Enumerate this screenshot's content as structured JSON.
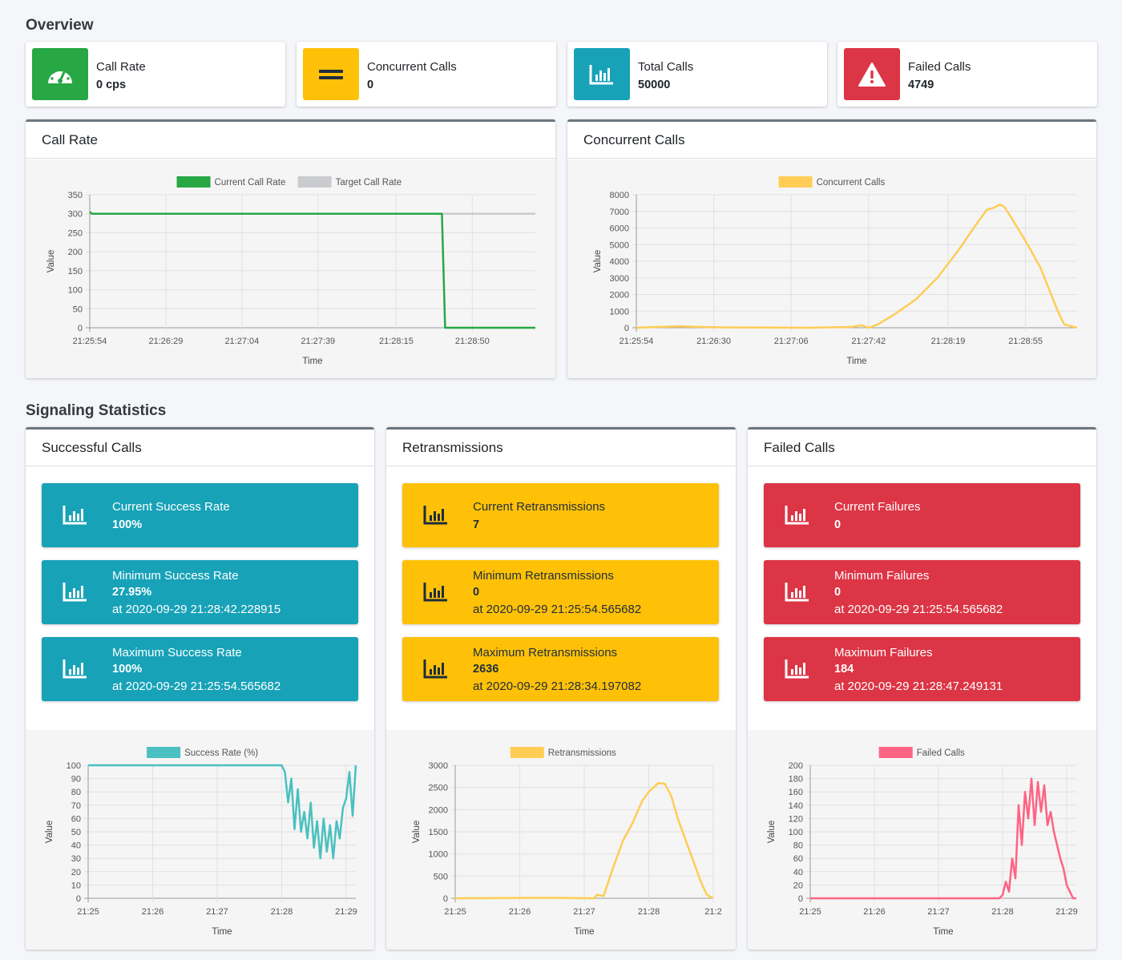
{
  "overview": {
    "title": "Overview",
    "boxes": [
      {
        "label": "Call Rate",
        "value": "0 cps",
        "icon": "speedometer-icon",
        "color": "#28a745"
      },
      {
        "label": "Concurrent Calls",
        "value": "0",
        "icon": "equals-icon",
        "color": "#ffc107"
      },
      {
        "label": "Total Calls",
        "value": "50000",
        "icon": "bar-chart-icon",
        "color": "#17a2b8"
      },
      {
        "label": "Failed Calls",
        "value": "4749",
        "icon": "warning-icon",
        "color": "#dc3545"
      }
    ]
  },
  "signaling": {
    "title": "Signaling Statistics",
    "cards": [
      {
        "title": "Successful Calls",
        "boxes": [
          {
            "label": "Current Success Rate",
            "value": "100%",
            "at": ""
          },
          {
            "label": "Minimum Success Rate",
            "value": "27.95%",
            "at": "at 2020-09-29 21:28:42.228915"
          },
          {
            "label": "Maximum Success Rate",
            "value": "100%",
            "at": "at 2020-09-29 21:25:54.565682"
          }
        ]
      },
      {
        "title": "Retransmissions",
        "boxes": [
          {
            "label": "Current Retransmissions",
            "value": "7",
            "at": ""
          },
          {
            "label": "Minimum Retransmissions",
            "value": "0",
            "at": "at 2020-09-29 21:25:54.565682"
          },
          {
            "label": "Maximum Retransmissions",
            "value": "2636",
            "at": "at 2020-09-29 21:28:34.197082"
          }
        ]
      },
      {
        "title": "Failed Calls",
        "boxes": [
          {
            "label": "Current Failures",
            "value": "0",
            "at": ""
          },
          {
            "label": "Minimum Failures",
            "value": "0",
            "at": "at 2020-09-29 21:25:54.565682"
          },
          {
            "label": "Maximum Failures",
            "value": "184",
            "at": "at 2020-09-29 21:28:47.249131"
          }
        ]
      }
    ]
  },
  "chart_data": [
    {
      "id": "call-rate",
      "card_title": "Call Rate",
      "type": "line",
      "xlabel": "Time",
      "ylabel": "Value",
      "ylim": [
        0,
        350
      ],
      "yticks": [
        0,
        50,
        100,
        150,
        200,
        250,
        300,
        350
      ],
      "xlim": [
        0,
        205
      ],
      "xticks": [
        0,
        35,
        70,
        105,
        141,
        176
      ],
      "xticklabels": [
        "21:25:54",
        "21:26:29",
        "21:27:04",
        "21:27:39",
        "21:28:15",
        "21:28:50"
      ],
      "legend_position": "top",
      "series": [
        {
          "name": "Current Call Rate",
          "color": "#28a745",
          "legend_fill": "#28a745",
          "points": [
            [
              0,
              305
            ],
            [
              1,
              300
            ],
            [
              162,
              300
            ],
            [
              163.5,
              0
            ],
            [
              205,
              0
            ]
          ]
        },
        {
          "name": "Target Call Rate",
          "color": "#c9cbcf",
          "legend_fill": "#c9cbcf",
          "points": [
            [
              0,
              300
            ],
            [
              205,
              300
            ]
          ]
        }
      ]
    },
    {
      "id": "concurrent",
      "card_title": "Concurrent Calls",
      "type": "line",
      "xlabel": "Time",
      "ylabel": "Value",
      "ylim": [
        0,
        8000
      ],
      "yticks": [
        0,
        1000,
        2000,
        3000,
        4000,
        5000,
        6000,
        7000,
        8000
      ],
      "xlim": [
        0,
        205
      ],
      "xticks": [
        0,
        36,
        72,
        108,
        145,
        181
      ],
      "xticklabels": [
        "21:25:54",
        "21:26:30",
        "21:27:06",
        "21:27:42",
        "21:28:19",
        "21:28:55"
      ],
      "legend_position": "top",
      "series": [
        {
          "name": "Concurrent Calls",
          "color": "#ffcd56",
          "legend_fill": "#ffcd56",
          "points": [
            [
              0,
              0
            ],
            [
              10,
              50
            ],
            [
              20,
              80
            ],
            [
              40,
              20
            ],
            [
              60,
              10
            ],
            [
              80,
              0
            ],
            [
              100,
              50
            ],
            [
              105,
              150
            ],
            [
              108,
              0
            ],
            [
              112,
              180
            ],
            [
              120,
              800
            ],
            [
              130,
              1700
            ],
            [
              140,
              3000
            ],
            [
              150,
              4700
            ],
            [
              158,
              6200
            ],
            [
              163,
              7100
            ],
            [
              166,
              7200
            ],
            [
              169,
              7400
            ],
            [
              171,
              7300
            ],
            [
              175,
              6500
            ],
            [
              182,
              5000
            ],
            [
              188,
              3600
            ],
            [
              192,
              2300
            ],
            [
              196,
              1000
            ],
            [
              199,
              200
            ],
            [
              205,
              0
            ]
          ]
        }
      ]
    },
    {
      "id": "success",
      "type": "line",
      "xlabel": "Time",
      "ylabel": "Value",
      "ylim": [
        0,
        100
      ],
      "yticks": [
        0,
        10,
        20,
        30,
        40,
        50,
        60,
        70,
        80,
        90,
        100
      ],
      "xlim": [
        0,
        4.15
      ],
      "xticks": [
        0,
        1,
        2,
        3,
        4
      ],
      "xticklabels": [
        "21:25",
        "21:26",
        "21:27",
        "21:28",
        "21:29"
      ],
      "legend_position": "top",
      "series": [
        {
          "name": "Success Rate (%)",
          "color": "#4bc0c0",
          "legend_fill": "#4bc0c0",
          "points": [
            [
              0,
              100
            ],
            [
              3.0,
              100
            ],
            [
              3.05,
              95
            ],
            [
              3.1,
              72
            ],
            [
              3.15,
              90
            ],
            [
              3.2,
              52
            ],
            [
              3.25,
              82
            ],
            [
              3.3,
              50
            ],
            [
              3.35,
              65
            ],
            [
              3.4,
              45
            ],
            [
              3.45,
              72
            ],
            [
              3.5,
              38
            ],
            [
              3.55,
              58
            ],
            [
              3.6,
              30
            ],
            [
              3.65,
              60
            ],
            [
              3.7,
              35
            ],
            [
              3.75,
              55
            ],
            [
              3.8,
              30
            ],
            [
              3.85,
              58
            ],
            [
              3.9,
              45
            ],
            [
              3.95,
              68
            ],
            [
              4.0,
              75
            ],
            [
              4.05,
              95
            ],
            [
              4.1,
              62
            ],
            [
              4.15,
              100
            ]
          ]
        }
      ]
    },
    {
      "id": "retrans",
      "type": "line",
      "xlabel": "Time",
      "ylabel": "Value",
      "ylim": [
        0,
        3000
      ],
      "yticks": [
        0,
        500,
        1000,
        1500,
        2000,
        2500,
        3000
      ],
      "xlim": [
        0,
        4.0
      ],
      "xticks": [
        0,
        1,
        2,
        3,
        4
      ],
      "xticklabels": [
        "21:25",
        "21:26",
        "21:27",
        "21:28",
        "21:2"
      ],
      "legend_position": "top",
      "series": [
        {
          "name": "Retransmissions",
          "color": "#ffcd56",
          "legend_fill": "#ffcd56",
          "points": [
            [
              0,
              0
            ],
            [
              1.5,
              10
            ],
            [
              2.15,
              0
            ],
            [
              2.2,
              80
            ],
            [
              2.3,
              50
            ],
            [
              2.45,
              700
            ],
            [
              2.6,
              1300
            ],
            [
              2.75,
              1700
            ],
            [
              2.9,
              2200
            ],
            [
              3.0,
              2400
            ],
            [
              3.15,
              2600
            ],
            [
              3.25,
              2580
            ],
            [
              3.35,
              2300
            ],
            [
              3.45,
              1800
            ],
            [
              3.6,
              1200
            ],
            [
              3.7,
              800
            ],
            [
              3.8,
              400
            ],
            [
              3.9,
              80
            ],
            [
              4.0,
              0
            ]
          ]
        }
      ]
    },
    {
      "id": "failed",
      "type": "line",
      "xlabel": "Time",
      "ylabel": "Value",
      "ylim": [
        0,
        200
      ],
      "yticks": [
        0,
        20,
        40,
        60,
        80,
        100,
        120,
        140,
        160,
        180,
        200
      ],
      "xlim": [
        0,
        4.15
      ],
      "xticks": [
        0,
        1,
        2,
        3,
        4
      ],
      "xticklabels": [
        "21:25",
        "21:26",
        "21:27",
        "21:28",
        "21:29"
      ],
      "legend_position": "top",
      "series": [
        {
          "name": "Failed Calls",
          "color": "#ff6384",
          "legend_fill": "#ff6384",
          "points": [
            [
              0,
              0
            ],
            [
              2.95,
              0
            ],
            [
              3.0,
              5
            ],
            [
              3.05,
              25
            ],
            [
              3.1,
              10
            ],
            [
              3.15,
              60
            ],
            [
              3.2,
              30
            ],
            [
              3.25,
              140
            ],
            [
              3.3,
              80
            ],
            [
              3.35,
              160
            ],
            [
              3.4,
              120
            ],
            [
              3.45,
              180
            ],
            [
              3.5,
              110
            ],
            [
              3.55,
              175
            ],
            [
              3.6,
              130
            ],
            [
              3.65,
              170
            ],
            [
              3.7,
              110
            ],
            [
              3.75,
              130
            ],
            [
              3.8,
              100
            ],
            [
              3.85,
              80
            ],
            [
              3.9,
              60
            ],
            [
              3.95,
              45
            ],
            [
              4.0,
              20
            ],
            [
              4.05,
              10
            ],
            [
              4.1,
              0
            ],
            [
              4.15,
              0
            ]
          ]
        }
      ]
    }
  ]
}
